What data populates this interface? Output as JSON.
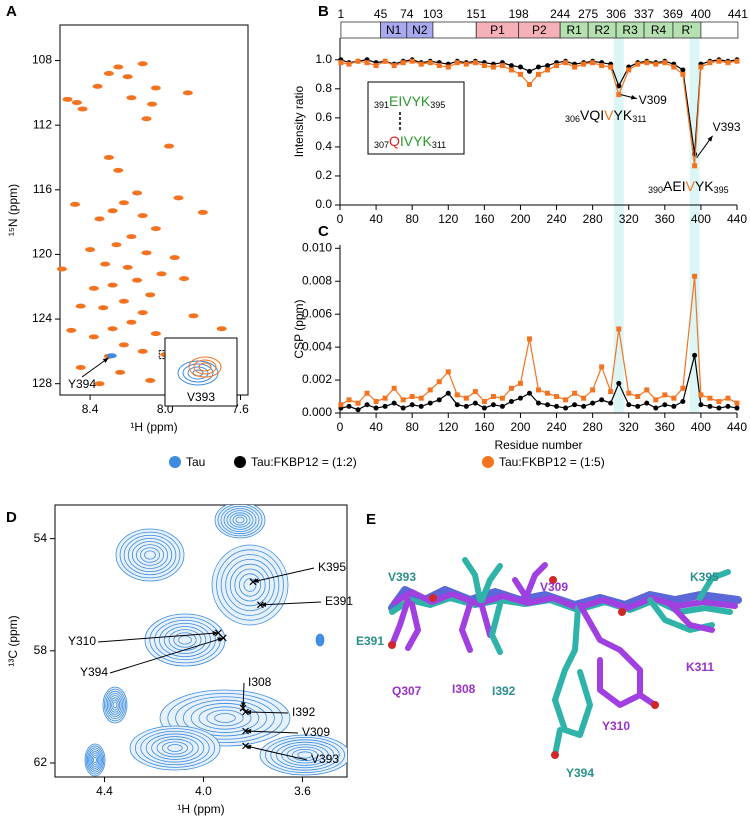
{
  "panel_labels": [
    "A",
    "B",
    "C",
    "D",
    "E"
  ],
  "legend": [
    {
      "name": "Tau",
      "color": "#3d8be0"
    },
    {
      "name": "Tau:FKBP12 = (1:2)",
      "color": "#000000"
    },
    {
      "name": "Tau:FKBP12 = (1:5)",
      "color": "#f47321"
    }
  ],
  "chart_data": [
    {
      "type": "scatter",
      "xlabel": "¹H (ppm)",
      "ylabel": "¹⁵N (ppm)",
      "xlim": [
        8.56,
        7.56
      ],
      "ylim": [
        105.8,
        128.7
      ],
      "xticks": [
        8.4,
        {
          "value": 8,
          "label": "8.0"
        },
        7.6
      ],
      "yticks": [
        108,
        112,
        116,
        120,
        124,
        128
      ],
      "series": [
        {
          "color": "#f47321",
          "x": [
            8.47,
            8.52,
            8.44,
            8.36,
            8.3,
            8.25,
            8.2,
            8.12,
            8.05,
            8.18,
            8.07,
            8.1,
            8.3,
            8.25,
            8.15,
            8.22,
            8.28,
            8.12,
            8.35,
            8.05,
            8.18,
            8.26,
            8.4,
            8.1,
            8.32,
            8.2,
            8.02,
            8.15,
            8.28,
            8.38,
            8.08,
            8.22,
            8.33,
            8.12,
            8.45,
            8.18,
            8.28,
            8.05,
            8.38,
            8.22,
            8.12,
            8.3,
            8.45,
            8.24,
            8.08,
            8.35,
            7.95,
            7.9,
            7.85,
            7.7,
            7.8,
            7.93,
            8.55,
            8.5,
            8.48,
            7.98,
            7.88,
            8.0
          ],
          "y": [
            110.6,
            110.4,
            111.0,
            109.6,
            108.8,
            108.4,
            109.0,
            108.2,
            109.7,
            110.3,
            110.7,
            111.6,
            114.0,
            114.8,
            116.2,
            116.8,
            117.3,
            117.6,
            117.8,
            118.4,
            118.9,
            119.4,
            119.7,
            119.9,
            120.6,
            120.8,
            121.2,
            121.6,
            121.9,
            122.1,
            122.5,
            122.9,
            123.3,
            123.6,
            123.2,
            124.2,
            124.6,
            124.9,
            125.1,
            125.6,
            126.0,
            126.3,
            127.0,
            127.3,
            127.8,
            128.0,
            120.2,
            121.5,
            123.8,
            124.6,
            117.4,
            116.5,
            120.9,
            124.7,
            116.9,
            113.3,
            110.0,
            126.2
          ]
        },
        {
          "color": "#3d8be0",
          "x": [
            8.285
          ],
          "y": [
            126.27
          ]
        }
      ],
      "annotations": [
        "Y394",
        "V393"
      ]
    },
    {
      "type": "line",
      "ylabel": "Intensity ratio",
      "xlim": [
        0,
        440
      ],
      "ylim": [
        0,
        1.15
      ],
      "xticks": [
        0,
        40,
        80,
        120,
        160,
        200,
        240,
        280,
        320,
        360,
        400,
        440
      ],
      "yticks": [
        {
          "value": 0,
          "label": "0.0"
        },
        0.2,
        0.4,
        0.6,
        0.8,
        {
          "value": 1,
          "label": "1.0"
        }
      ],
      "domain_boundaries": [
        1,
        45,
        74,
        103,
        151,
        198,
        244,
        275,
        306,
        337,
        369,
        400,
        441
      ],
      "domain_labels": [
        null,
        "N1",
        "N2",
        null,
        "P1",
        "P2",
        "R1",
        "R2",
        "R3",
        "R4",
        "R'",
        null
      ],
      "domain_colors": [
        "#ffffff",
        "#a9a9f0",
        "#a9a9f0",
        "#ffffff",
        "#f5b0b8",
        "#f5b0b8",
        "#b5e0b0",
        "#b5e0b0",
        "#b5e0b0",
        "#b5e0b0",
        "#b5e0b0",
        "#ffffff"
      ],
      "highlight_x": [
        309,
        393
      ],
      "x": [
        1,
        10,
        20,
        30,
        40,
        50,
        60,
        70,
        80,
        90,
        100,
        110,
        120,
        130,
        140,
        150,
        160,
        170,
        180,
        190,
        200,
        210,
        220,
        230,
        240,
        250,
        260,
        270,
        280,
        290,
        300,
        309,
        320,
        330,
        340,
        350,
        360,
        370,
        380,
        393,
        400,
        410,
        420,
        430,
        440
      ],
      "series": [
        {
          "color": "#000000",
          "values": [
            1.0,
            0.98,
            0.99,
            1.0,
            0.98,
            0.99,
            0.97,
            0.99,
            1.0,
            0.98,
            0.99,
            0.98,
            0.97,
            0.99,
            0.98,
            0.99,
            0.98,
            0.97,
            0.98,
            0.96,
            0.95,
            0.92,
            0.95,
            0.96,
            0.98,
            0.99,
            0.97,
            0.98,
            0.99,
            0.98,
            0.97,
            0.82,
            0.95,
            0.98,
            0.99,
            0.98,
            0.99,
            0.97,
            0.93,
            0.35,
            0.97,
            0.99,
            1.0,
            0.99,
            1.0
          ]
        },
        {
          "color": "#f47321",
          "values": [
            0.98,
            0.97,
            0.99,
            0.98,
            0.96,
            0.99,
            0.96,
            0.98,
            0.99,
            0.97,
            0.98,
            0.96,
            0.95,
            0.98,
            0.97,
            0.98,
            0.96,
            0.95,
            0.96,
            0.93,
            0.9,
            0.83,
            0.9,
            0.93,
            0.96,
            0.98,
            0.95,
            0.97,
            0.98,
            0.96,
            0.95,
            0.76,
            0.93,
            0.97,
            0.98,
            0.97,
            0.98,
            0.95,
            0.9,
            0.27,
            0.95,
            0.98,
            0.99,
            0.98,
            0.99
          ]
        }
      ],
      "annotations": [
        "V309",
        "V393"
      ],
      "sequences": [
        {
          "pre": "306",
          "parts": [
            "VQI",
            "V",
            "YK"
          ],
          "colors": [
            "#000000",
            "#f47321",
            "#000000"
          ],
          "post": "311"
        },
        {
          "pre": "390",
          "parts": [
            "AEI",
            "V",
            "YK"
          ],
          "colors": [
            "#000000",
            "#f47321",
            "#000000"
          ],
          "post": "395"
        },
        {
          "pre": "391",
          "parts": [
            "EIVYK"
          ],
          "colors": [
            "#2a9a2a"
          ],
          "post": "395"
        },
        {
          "pre": "307",
          "parts": [
            "Q",
            "IVYK"
          ],
          "colors": [
            "#e02020",
            "#2a9a2a"
          ],
          "post": "311"
        }
      ]
    },
    {
      "type": "line",
      "xlabel": "Residue number",
      "ylabel": "CSP (ppm)",
      "xlim": [
        0,
        440
      ],
      "ylim": [
        0,
        0.0102
      ],
      "xticks": [
        0,
        40,
        80,
        120,
        160,
        200,
        240,
        280,
        320,
        360,
        400,
        440
      ],
      "yticks": [
        {
          "value": 0,
          "label": "0.000"
        },
        0.002,
        0.004,
        0.006,
        0.008,
        {
          "value": 0.01,
          "label": "0.010"
        }
      ],
      "x": [
        1,
        10,
        20,
        30,
        40,
        50,
        60,
        70,
        80,
        90,
        100,
        110,
        120,
        130,
        140,
        150,
        160,
        170,
        180,
        190,
        200,
        210,
        220,
        230,
        240,
        250,
        260,
        270,
        280,
        290,
        300,
        309,
        320,
        330,
        340,
        350,
        360,
        370,
        380,
        393,
        400,
        410,
        420,
        430,
        440
      ],
      "series": [
        {
          "color": "#000000",
          "values": [
            0.0003,
            0.0004,
            0.0002,
            0.0005,
            0.0003,
            0.0004,
            0.0006,
            0.0003,
            0.0005,
            0.0004,
            0.0006,
            0.0008,
            0.0012,
            0.0005,
            0.0004,
            0.0006,
            0.0003,
            0.0005,
            0.0004,
            0.0007,
            0.0009,
            0.0012,
            0.0006,
            0.0005,
            0.0004,
            0.0003,
            0.0005,
            0.0004,
            0.0006,
            0.0008,
            0.0006,
            0.0018,
            0.0005,
            0.0004,
            0.0006,
            0.0003,
            0.0005,
            0.0004,
            0.0007,
            0.0035,
            0.0005,
            0.0004,
            0.0003,
            0.0004,
            0.0003
          ]
        },
        {
          "color": "#f47321",
          "values": [
            0.0005,
            0.0008,
            0.0006,
            0.0012,
            0.0007,
            0.0009,
            0.0015,
            0.0008,
            0.001,
            0.0009,
            0.0014,
            0.0019,
            0.0025,
            0.0011,
            0.0009,
            0.0013,
            0.0007,
            0.001,
            0.0009,
            0.0015,
            0.0018,
            0.0045,
            0.0014,
            0.0012,
            0.001,
            0.0008,
            0.0012,
            0.0009,
            0.0014,
            0.0028,
            0.0013,
            0.0051,
            0.0012,
            0.001,
            0.0014,
            0.0008,
            0.0011,
            0.0009,
            0.0015,
            0.0083,
            0.0011,
            0.0009,
            0.0007,
            0.0009,
            0.0006
          ]
        }
      ]
    },
    {
      "type": "scatter",
      "xlabel": "¹H (ppm)",
      "ylabel": "¹³C (ppm)",
      "xlim": [
        4.6,
        3.42
      ],
      "ylim": [
        52.8,
        62.5
      ],
      "xticks": [
        4.4,
        {
          "value": 4,
          "label": "4.0"
        },
        3.6
      ],
      "yticks": [
        54,
        58,
        62
      ],
      "points": {
        "labels": [
          "K395",
          "E391",
          "Y310",
          "Y394",
          "I308",
          "I392",
          "V309",
          "V393"
        ],
        "x": [
          3.8,
          3.77,
          3.94,
          3.92,
          3.84,
          3.83,
          3.83,
          3.83
        ],
        "y": [
          55.54,
          56.36,
          57.36,
          57.54,
          60.04,
          60.18,
          60.86,
          61.39
        ]
      }
    }
  ],
  "structure": {
    "residues": [
      {
        "text": "V393",
        "color": "#2a8f8a"
      },
      {
        "text": "V309",
        "color": "#9a30c8"
      },
      {
        "text": "K395",
        "color": "#2a8f8a"
      },
      {
        "text": "E391",
        "color": "#2a8f8a"
      },
      {
        "text": "K311",
        "color": "#9a30c8"
      },
      {
        "text": "Q307",
        "color": "#9a30c8"
      },
      {
        "text": "I308",
        "color": "#9a30c8"
      },
      {
        "text": "I392",
        "color": "#2a8f8a"
      },
      {
        "text": "Y394",
        "color": "#2a8f8a"
      },
      {
        "text": "Y310",
        "color": "#9a30c8"
      }
    ]
  }
}
